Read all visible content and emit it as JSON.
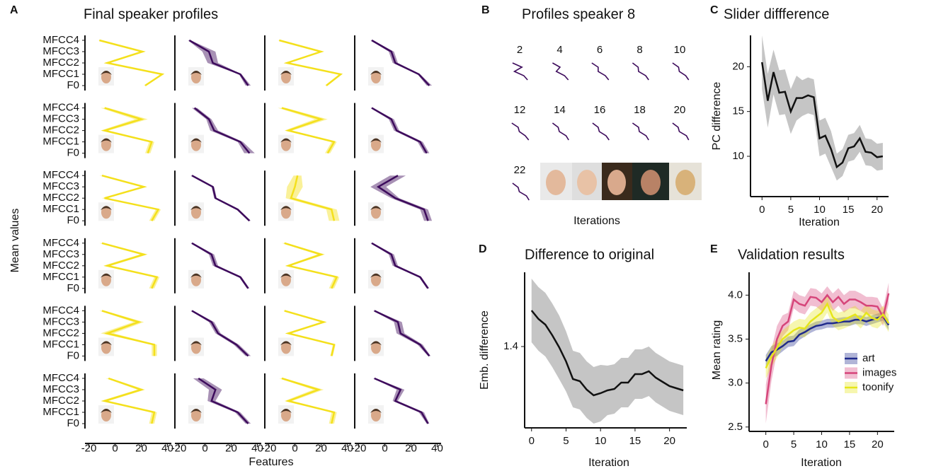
{
  "chart_data": [
    {
      "type": "profiles",
      "panel_label": "A",
      "title": "Final speaker profiles",
      "ylabel": "Mean values",
      "xlabel": "Features",
      "categories": [
        "F0",
        "MFCC1",
        "MFCC2",
        "MFCC3",
        "MFCC4"
      ],
      "xlim": [
        -23,
        43
      ],
      "xticks": [
        -20,
        0,
        20,
        40
      ],
      "profiles": [
        {
          "color": "#f4e01c",
          "values": [
            23,
            36,
            -6,
            21,
            -12
          ],
          "errors": [
            1,
            1,
            1,
            1,
            1
          ]
        },
        {
          "color": "#3d0b5c",
          "values": [
            33,
            27,
            6,
            3,
            -12
          ],
          "errors": [
            2,
            1,
            4,
            5,
            1
          ]
        },
        {
          "color": "#f4e01c",
          "values": [
            24,
            35,
            -6,
            20,
            -12
          ],
          "errors": [
            1,
            1,
            1,
            1,
            1
          ]
        },
        {
          "color": "#3d0b5c",
          "values": [
            34,
            26,
            8,
            5,
            -10
          ],
          "errors": [
            2,
            1,
            2,
            2,
            1
          ]
        },
        {
          "color": "#f4e01c",
          "values": [
            25,
            28,
            -8,
            20,
            -8
          ],
          "errors": [
            2,
            2,
            3,
            5,
            3
          ]
        },
        {
          "color": "#3d0b5c",
          "values": [
            34,
            27,
            7,
            3,
            -8
          ],
          "errors": [
            4,
            2,
            3,
            2,
            2
          ]
        },
        {
          "color": "#f4e01c",
          "values": [
            25,
            30,
            -5,
            20,
            -10
          ],
          "errors": [
            2,
            2,
            3,
            5,
            3
          ]
        },
        {
          "color": "#3d0b5c",
          "values": [
            32,
            27,
            9,
            5,
            -10
          ],
          "errors": [
            2,
            2,
            2,
            2,
            1
          ]
        },
        {
          "color": "#f4e01c",
          "values": [
            28,
            33,
            -8,
            22,
            -10
          ],
          "errors": [
            2,
            2,
            2,
            2,
            2
          ]
        },
        {
          "color": "#3d0b5c",
          "values": [
            34,
            25,
            8,
            6,
            -10
          ],
          "errors": [
            1,
            1,
            1,
            1,
            1
          ]
        },
        {
          "color": "#f4e01c",
          "values": [
            30,
            28,
            -3,
            0,
            2
          ],
          "errors": [
            4,
            4,
            4,
            6,
            3
          ]
        },
        {
          "color": "#3d0b5c",
          "values": [
            33,
            30,
            8,
            -5,
            10
          ],
          "errors": [
            3,
            3,
            3,
            6,
            6
          ]
        },
        {
          "color": "#f4e01c",
          "values": [
            28,
            32,
            -6,
            22,
            -10
          ],
          "errors": [
            2,
            2,
            3,
            3,
            2
          ]
        },
        {
          "color": "#3d0b5c",
          "values": [
            33,
            27,
            8,
            5,
            -10
          ],
          "errors": [
            1,
            1,
            2,
            2,
            1
          ]
        },
        {
          "color": "#f4e01c",
          "values": [
            28,
            32,
            -5,
            20,
            -8
          ],
          "errors": [
            2,
            2,
            2,
            3,
            2
          ]
        },
        {
          "color": "#3d0b5c",
          "values": [
            33,
            27,
            8,
            5,
            -10
          ],
          "errors": [
            1,
            1,
            2,
            2,
            1
          ]
        },
        {
          "color": "#f4e01c",
          "values": [
            30,
            30,
            -6,
            18,
            -10
          ],
          "errors": [
            2,
            2,
            5,
            4,
            2
          ]
        },
        {
          "color": "#3d0b5c",
          "values": [
            33,
            24,
            10,
            5,
            -10
          ],
          "errors": [
            2,
            2,
            2,
            2,
            1
          ]
        },
        {
          "color": "#f4e01c",
          "values": [
            28,
            30,
            -5,
            22,
            -8
          ],
          "errors": [
            1,
            1,
            2,
            2,
            1
          ]
        },
        {
          "color": "#3d0b5c",
          "values": [
            34,
            27,
            12,
            10,
            -8
          ],
          "errors": [
            1,
            2,
            3,
            3,
            1
          ]
        },
        {
          "color": "#f4e01c",
          "values": [
            28,
            30,
            -8,
            20,
            -5
          ],
          "errors": [
            2,
            2,
            3,
            3,
            2
          ]
        },
        {
          "color": "#3d0b5c",
          "values": [
            33,
            25,
            5,
            8,
            -5
          ],
          "errors": [
            2,
            2,
            3,
            5,
            4
          ]
        },
        {
          "color": "#f4e01c",
          "values": [
            28,
            30,
            -5,
            18,
            -10
          ],
          "errors": [
            2,
            2,
            3,
            4,
            2
          ]
        },
        {
          "color": "#3d0b5c",
          "values": [
            33,
            28,
            8,
            12,
            -8
          ],
          "errors": [
            1,
            2,
            2,
            3,
            1
          ]
        }
      ]
    },
    {
      "type": "multiples",
      "panel_label": "B",
      "title": "Profiles speaker 8",
      "xlabel": "Iterations",
      "iterations": [
        2,
        4,
        6,
        8,
        10,
        12,
        14,
        16,
        18,
        20,
        22
      ],
      "xlim": [
        -23,
        43
      ],
      "color": "#3d0b5c",
      "profiles": [
        [
          30,
          20,
          -5,
          15,
          -10
        ],
        [
          32,
          22,
          0,
          10,
          -10
        ],
        [
          33,
          24,
          5,
          5,
          -12
        ],
        [
          33,
          25,
          6,
          5,
          -10
        ],
        [
          33,
          25,
          8,
          6,
          -10
        ],
        [
          33,
          24,
          8,
          5,
          -12
        ],
        [
          33,
          26,
          8,
          5,
          -10
        ],
        [
          34,
          26,
          8,
          5,
          -10
        ],
        [
          33,
          26,
          8,
          6,
          -10
        ],
        [
          33,
          27,
          8,
          5,
          -10
        ],
        [
          34,
          27,
          8,
          5,
          -10
        ]
      ]
    },
    {
      "type": "line",
      "panel_label": "C",
      "title": "Slider diffference",
      "xlabel": "Iteration",
      "ylabel": "PC difference",
      "x": [
        0,
        1,
        2,
        3,
        4,
        5,
        6,
        7,
        8,
        9,
        10,
        11,
        12,
        13,
        14,
        15,
        16,
        17,
        18,
        19,
        20,
        21
      ],
      "xlim": [
        -2,
        22
      ],
      "xticks": [
        0,
        5,
        10,
        15,
        20
      ],
      "ylim": [
        5.5,
        23.5
      ],
      "yticks": [
        10,
        15,
        20
      ],
      "series": [
        {
          "color": "#111111",
          "values": [
            20.5,
            16.2,
            19.4,
            17.1,
            17.2,
            15.0,
            16.5,
            16.5,
            16.8,
            16.6,
            12.0,
            12.3,
            10.8,
            8.8,
            9.3,
            10.9,
            11.1,
            12.0,
            10.5,
            10.4,
            9.9,
            10.0
          ],
          "errors": [
            3,
            3,
            2.5,
            2.5,
            2.5,
            2.5,
            2.5,
            2,
            2,
            2,
            2,
            2,
            2,
            1.5,
            1.5,
            1.5,
            1.5,
            1.5,
            1.5,
            1.5,
            1.5,
            1.5
          ]
        }
      ]
    },
    {
      "type": "line",
      "panel_label": "D",
      "title": "Difference to original",
      "xlabel": "Iteration",
      "ylabel": "Emb. difference",
      "x": [
        0,
        1,
        2,
        3,
        4,
        5,
        6,
        7,
        8,
        9,
        10,
        11,
        12,
        13,
        14,
        15,
        16,
        17,
        18,
        19,
        20,
        21,
        22
      ],
      "xlim": [
        -1,
        22.5
      ],
      "xticks": [
        0,
        5,
        10,
        15,
        20
      ],
      "ylim": [
        1.17,
        1.61
      ],
      "yticks": [
        1.4
      ],
      "series": [
        {
          "color": "#111111",
          "values": [
            1.502,
            1.478,
            1.462,
            1.432,
            1.398,
            1.358,
            1.308,
            1.302,
            1.278,
            1.262,
            1.268,
            1.276,
            1.28,
            1.298,
            1.298,
            1.322,
            1.322,
            1.33,
            1.312,
            1.3,
            1.288,
            1.282,
            1.276
          ],
          "errors": [
            0.09,
            0.09,
            0.09,
            0.09,
            0.09,
            0.085,
            0.08,
            0.08,
            0.08,
            0.08,
            0.08,
            0.07,
            0.07,
            0.07,
            0.07,
            0.07,
            0.07,
            0.07,
            0.07,
            0.07,
            0.07,
            0.07,
            0.07
          ]
        }
      ]
    },
    {
      "type": "line",
      "panel_label": "E",
      "title": "Validation results",
      "xlabel": "Iteration",
      "ylabel": "Mean rating",
      "x": [
        0,
        1,
        2,
        3,
        4,
        5,
        6,
        7,
        8,
        9,
        10,
        11,
        12,
        13,
        14,
        15,
        16,
        17,
        18,
        19,
        20,
        21,
        22
      ],
      "xlim": [
        -3,
        23
      ],
      "xticks": [
        0,
        5,
        10,
        15,
        20
      ],
      "ylim": [
        2.45,
        4.26
      ],
      "yticks": [
        2.5,
        {
          "value": 3,
          "label": "3.0"
        },
        3.5,
        {
          "value": 4,
          "label": "4.0"
        }
      ],
      "legend": "right",
      "series": [
        {
          "name": "art",
          "color": "#1f2a8c",
          "values": [
            3.25,
            3.35,
            3.38,
            3.42,
            3.47,
            3.48,
            3.55,
            3.58,
            3.62,
            3.65,
            3.66,
            3.68,
            3.68,
            3.69,
            3.7,
            3.7,
            3.72,
            3.72,
            3.7,
            3.72,
            3.74,
            3.76,
            3.66
          ],
          "errors": [
            0.07,
            0.07,
            0.07,
            0.06,
            0.06,
            0.06,
            0.06,
            0.05,
            0.05,
            0.05,
            0.05,
            0.05,
            0.05,
            0.05,
            0.05,
            0.05,
            0.05,
            0.05,
            0.05,
            0.05,
            0.05,
            0.05,
            0.06
          ]
        },
        {
          "name": "images",
          "color": "#d6457a",
          "values": [
            2.76,
            3.2,
            3.5,
            3.65,
            3.7,
            3.95,
            3.9,
            3.88,
            3.98,
            3.97,
            3.92,
            4.0,
            3.92,
            3.98,
            3.9,
            3.95,
            3.95,
            3.92,
            3.88,
            3.88,
            3.87,
            3.75,
            4.02
          ],
          "errors": [
            0.22,
            0.18,
            0.15,
            0.12,
            0.1,
            0.1,
            0.1,
            0.1,
            0.1,
            0.1,
            0.1,
            0.1,
            0.1,
            0.1,
            0.1,
            0.1,
            0.1,
            0.1,
            0.1,
            0.1,
            0.1,
            0.1,
            0.12
          ]
        },
        {
          "name": "toonify",
          "color": "#e6e61a",
          "values": [
            3.17,
            3.3,
            3.4,
            3.5,
            3.55,
            3.6,
            3.63,
            3.62,
            3.7,
            3.75,
            3.8,
            3.9,
            3.75,
            3.7,
            3.72,
            3.75,
            3.78,
            3.72,
            3.8,
            3.74,
            3.72,
            3.78,
            3.68
          ],
          "errors": [
            0.12,
            0.12,
            0.11,
            0.1,
            0.1,
            0.1,
            0.1,
            0.1,
            0.1,
            0.1,
            0.1,
            0.1,
            0.1,
            0.1,
            0.1,
            0.1,
            0.1,
            0.1,
            0.1,
            0.1,
            0.1,
            0.1,
            0.1
          ]
        }
      ]
    }
  ]
}
